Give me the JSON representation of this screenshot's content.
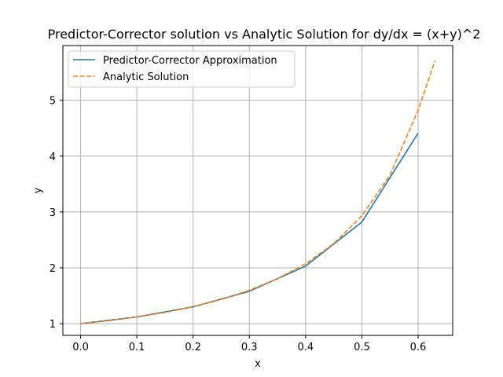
{
  "chart_data": {
    "type": "line",
    "title": "Predictor-Corrector solution vs Analytic Solution for dy/dx = (x+y)^2",
    "xlabel": "x",
    "ylabel": "y",
    "xlim": [
      -0.0315,
      0.6615
    ],
    "ylim": [
      0.79,
      5.98
    ],
    "xticks": [
      0.0,
      0.1,
      0.2,
      0.3,
      0.4,
      0.5,
      0.6
    ],
    "xtick_labels": [
      "0.0",
      "0.1",
      "0.2",
      "0.3",
      "0.4",
      "0.5",
      "0.6"
    ],
    "yticks": [
      1,
      2,
      3,
      4,
      5
    ],
    "ytick_labels": [
      "1",
      "2",
      "3",
      "4",
      "5"
    ],
    "grid": true,
    "legend_position": "top-left",
    "series": [
      {
        "name": "Predictor-Corrector Approximation",
        "color": "#1f77b4",
        "style": "solid",
        "x": [
          0.0,
          0.1,
          0.2,
          0.3,
          0.4,
          0.5,
          0.6
        ],
        "y": [
          1.0,
          1.12,
          1.3,
          1.58,
          2.03,
          2.82,
          4.41
        ]
      },
      {
        "name": "Analytic Solution",
        "color": "#ff7f0e",
        "style": "dashed",
        "x": [
          0.0,
          0.05,
          0.1,
          0.15,
          0.2,
          0.25,
          0.3,
          0.35,
          0.4,
          0.45,
          0.5,
          0.55,
          0.6,
          0.63
        ],
        "y": [
          1.0,
          1.053,
          1.119,
          1.2,
          1.305,
          1.434,
          1.598,
          1.806,
          2.073,
          2.431,
          2.93,
          3.66,
          4.82,
          5.71
        ]
      }
    ]
  }
}
